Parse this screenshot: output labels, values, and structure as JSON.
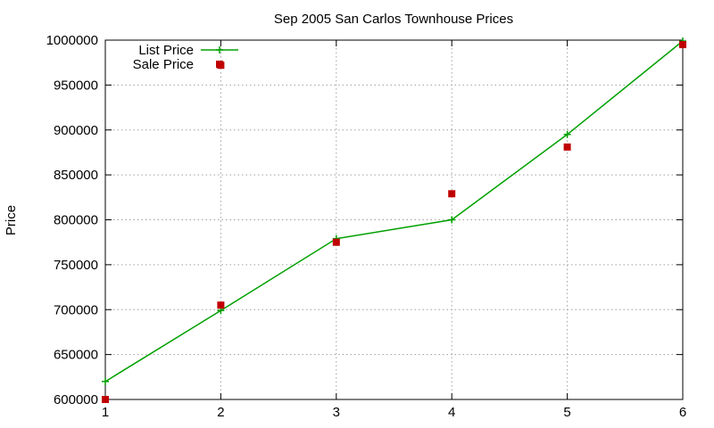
{
  "chart_data": {
    "type": "line",
    "title": "Sep 2005 San Carlos Townhouse Prices",
    "xlabel": "",
    "ylabel": "Price",
    "xlim": [
      1,
      6
    ],
    "ylim": [
      600000,
      1000000
    ],
    "xticks": [
      "1",
      "2",
      "3",
      "4",
      "5",
      "6"
    ],
    "yticks": [
      "600000",
      "650000",
      "700000",
      "750000",
      "800000",
      "850000",
      "900000",
      "950000",
      "1000000"
    ],
    "grid": true,
    "legend_position": "top-left",
    "series": [
      {
        "name": "List Price",
        "style": "line-with-plus-markers",
        "color": "#00a000",
        "x": [
          1,
          2,
          3,
          4,
          5,
          6
        ],
        "y": [
          620000,
          699000,
          779000,
          800000,
          895000,
          999000
        ]
      },
      {
        "name": "Sale Price",
        "style": "square-markers",
        "color": "#c00000",
        "x": [
          1,
          2,
          2,
          3,
          4,
          5,
          6
        ],
        "y": [
          600000,
          705000,
          972000,
          775000,
          829000,
          881000,
          995000
        ]
      }
    ]
  }
}
